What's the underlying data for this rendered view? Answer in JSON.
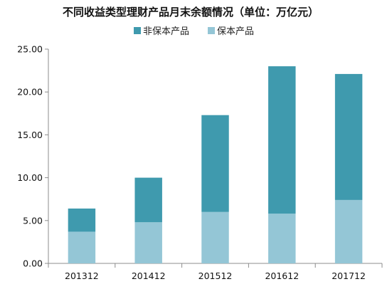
{
  "chart_data": {
    "type": "bar",
    "stacked": true,
    "title": "不同收益类型理财产品月末余额情况（单位：万亿元）",
    "categories": [
      "201312",
      "201412",
      "201512",
      "201612",
      "201712"
    ],
    "series": [
      {
        "name": "保本产品",
        "values": [
          3.7,
          4.8,
          6.0,
          5.8,
          7.4
        ],
        "color": "#94c6d6"
      },
      {
        "name": "非保本产品",
        "values": [
          2.7,
          5.2,
          11.3,
          17.2,
          14.7
        ],
        "color": "#3f9aae"
      }
    ],
    "legend_order": [
      "非保本产品",
      "保本产品"
    ],
    "legend_position": "top",
    "ylim": [
      0,
      25
    ],
    "yticks": [
      "0.00",
      "5.00",
      "10.00",
      "15.00",
      "20.00",
      "25.00"
    ],
    "grid": false,
    "xlabel": "",
    "ylabel": ""
  }
}
